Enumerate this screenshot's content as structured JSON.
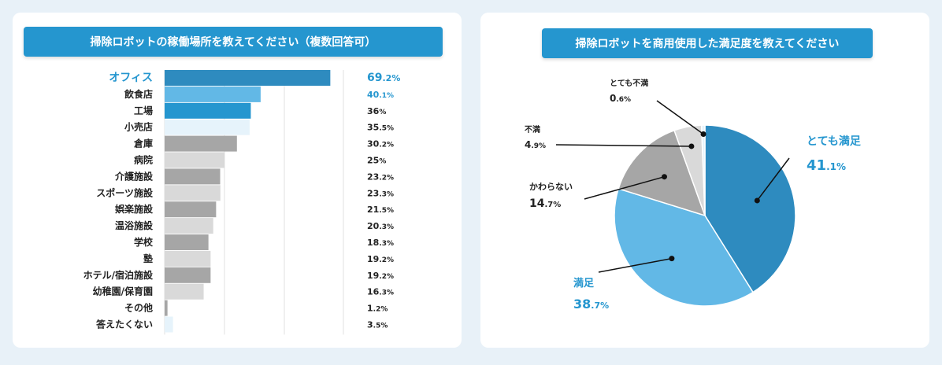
{
  "chart_data": [
    {
      "type": "bar",
      "title": "掃除ロボットの稼働場所を教えてください（複数回答可）",
      "categories": [
        "オフィス",
        "飲食店",
        "工場",
        "小売店",
        "倉庫",
        "病院",
        "介護施設",
        "スポーツ施設",
        "娯楽施設",
        "温浴施設",
        "学校",
        "塾",
        "ホテル/宿泊施設",
        "幼稚園/保育園",
        "その他",
        "答えたくない"
      ],
      "value_labels": [
        {
          "main": "69",
          "unit": ".2%"
        },
        {
          "main": "40",
          "unit": ".1%"
        },
        {
          "main": "36",
          "unit": "%"
        },
        {
          "main": "35",
          "unit": ".5%"
        },
        {
          "main": "30",
          "unit": ".2%"
        },
        {
          "main": "25",
          "unit": "%"
        },
        {
          "main": "23",
          "unit": ".2%"
        },
        {
          "main": "23",
          "unit": ".3%"
        },
        {
          "main": "21",
          "unit": ".5%"
        },
        {
          "main": "20",
          "unit": ".3%"
        },
        {
          "main": "18",
          "unit": ".3%"
        },
        {
          "main": "19",
          "unit": ".2%"
        },
        {
          "main": "19",
          "unit": ".2%"
        },
        {
          "main": "16",
          "unit": ".3%"
        },
        {
          "main": "1",
          "unit": ".2%"
        },
        {
          "main": "3",
          "unit": ".5%"
        }
      ],
      "values": [
        69.2,
        40.1,
        36,
        35.5,
        30.2,
        25,
        23.2,
        23.3,
        21.5,
        20.3,
        18.3,
        19.2,
        19.2,
        16.3,
        1.2,
        3.5
      ],
      "xlim": [
        0,
        100
      ],
      "orientation": "horizontal",
      "grid": true,
      "colors": [
        "#2e8bbf",
        "#62b8e6",
        "#2596cf",
        "#e6f3fb",
        "#a6a6a6",
        "#d9d9d9",
        "#a6a6a6",
        "#d9d9d9",
        "#a6a6a6",
        "#d9d9d9",
        "#a6a6a6",
        "#d9d9d9",
        "#a6a6a6",
        "#d9d9d9",
        "#a6a6a6",
        "#e6f3fb"
      ],
      "highlight_labels": [
        0
      ],
      "highlight_values": [
        0,
        1
      ]
    },
    {
      "type": "pie",
      "title": "掃除ロボットを商用使用した満足度を教えてください",
      "slices": [
        {
          "label": "とても満足",
          "main": "41",
          "unit": ".1%",
          "value": 41.1,
          "color": "#2e8bbf"
        },
        {
          "label": "満足",
          "main": "38",
          "unit": ".7%",
          "value": 38.7,
          "color": "#62b8e6"
        },
        {
          "label": "かわらない",
          "main": "14",
          "unit": ".7%",
          "value": 14.7,
          "color": "#a6a6a6"
        },
        {
          "label": "不満",
          "main": "4",
          "unit": ".9%",
          "value": 4.9,
          "color": "#d9d9d9"
        },
        {
          "label": "とても不満",
          "main": "0",
          "unit": ".6%",
          "value": 0.6,
          "color": "#e6f3fb"
        }
      ]
    }
  ]
}
